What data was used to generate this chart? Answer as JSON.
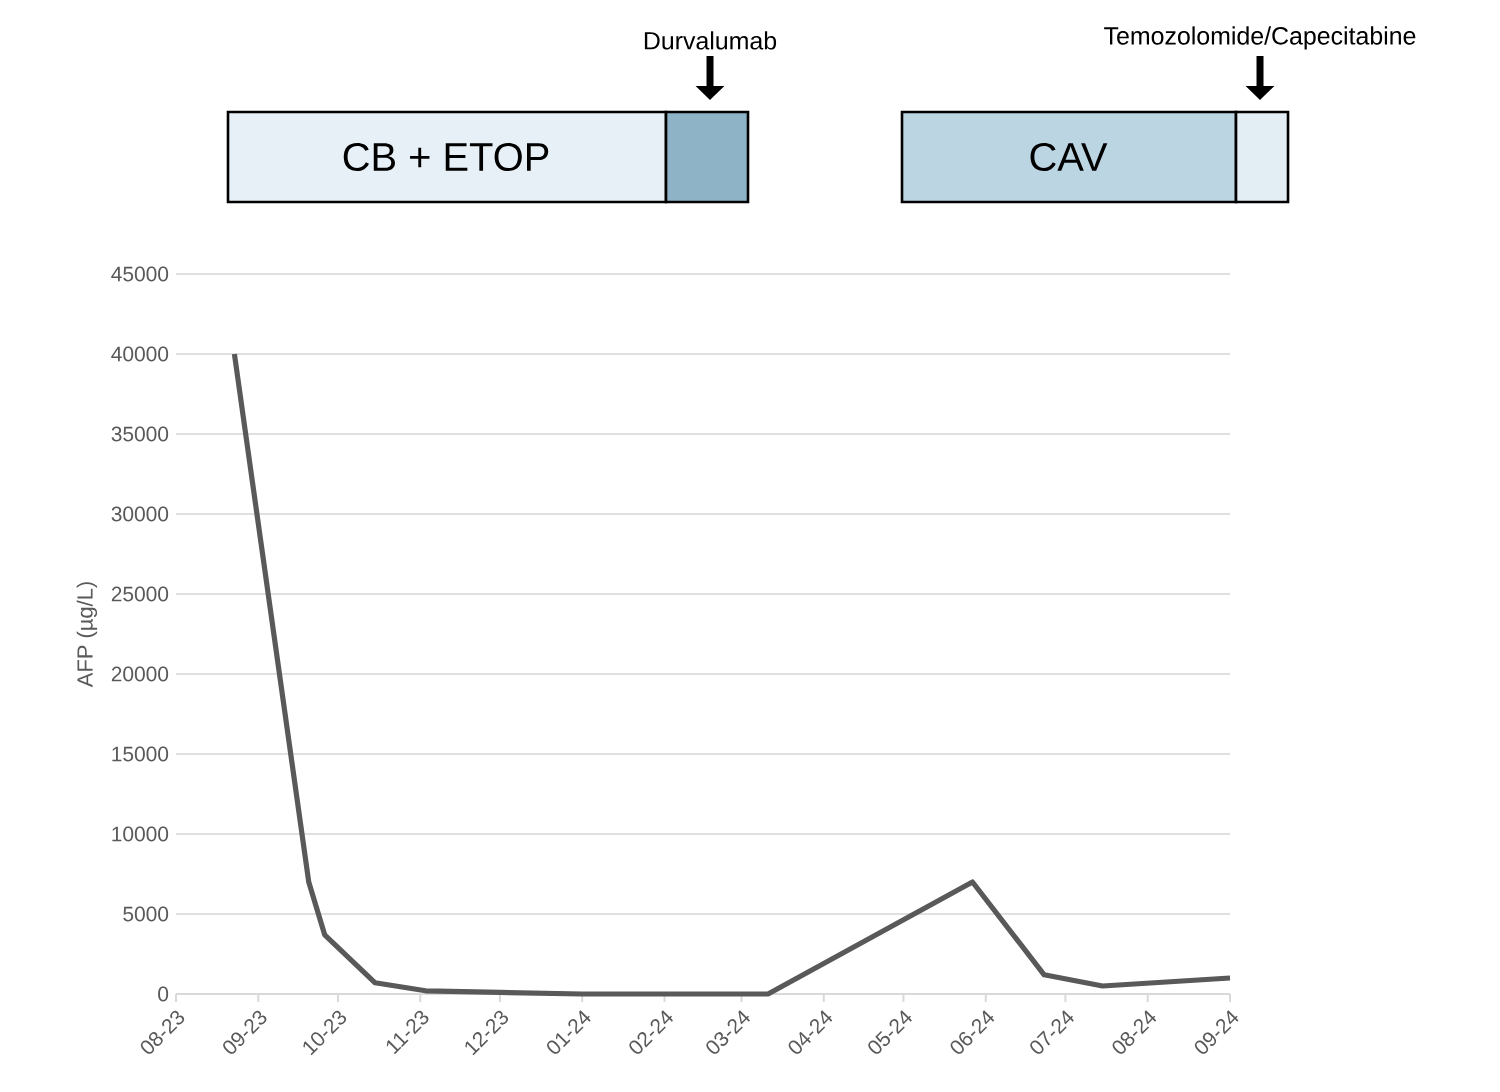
{
  "chart_data": {
    "type": "line",
    "ylabel": "AFP (µg/L)",
    "x": [
      "2023-08-23",
      "2023-09-20",
      "2023-09-26",
      "2023-10-15",
      "2023-11-03",
      "2023-12-01",
      "2024-01-01",
      "2024-03-11",
      "2024-05-27",
      "2024-06-23",
      "2024-07-15",
      "2024-09-01"
    ],
    "series": [
      {
        "color": "#595959",
        "values": [
          40000,
          7000,
          3700,
          700,
          200,
          100,
          0,
          0,
          7000,
          1200,
          500,
          1000
        ]
      }
    ],
    "xlim": [
      "2023-08",
      "2024-09"
    ],
    "xticks": [
      {
        "value": "2023-08",
        "label": "08-23"
      },
      {
        "value": "2023-09",
        "label": "09-23"
      },
      {
        "value": "2023-10",
        "label": "10-23"
      },
      {
        "value": "2023-11",
        "label": "11-23"
      },
      {
        "value": "2023-12",
        "label": "12-23"
      },
      {
        "value": "2024-01",
        "label": "01-24"
      },
      {
        "value": "2024-02",
        "label": "02-24"
      },
      {
        "value": "2024-03",
        "label": "03-24"
      },
      {
        "value": "2024-04",
        "label": "04-24"
      },
      {
        "value": "2024-05",
        "label": "05-24"
      },
      {
        "value": "2024-06",
        "label": "06-24"
      },
      {
        "value": "2024-07",
        "label": "07-24"
      },
      {
        "value": "2024-08",
        "label": "08-24"
      },
      {
        "value": "2024-09",
        "label": "09-24"
      }
    ],
    "ylim": [
      0,
      45000
    ],
    "yticks": [
      0,
      5000,
      10000,
      15000,
      20000,
      25000,
      30000,
      35000,
      40000,
      45000
    ],
    "grid": "y",
    "marker": "none",
    "line_style": "solid",
    "annotations": [
      "CB + ETOP",
      "Durvalumab",
      "CAV",
      "Temozolomide/Capecitabine"
    ]
  }
}
